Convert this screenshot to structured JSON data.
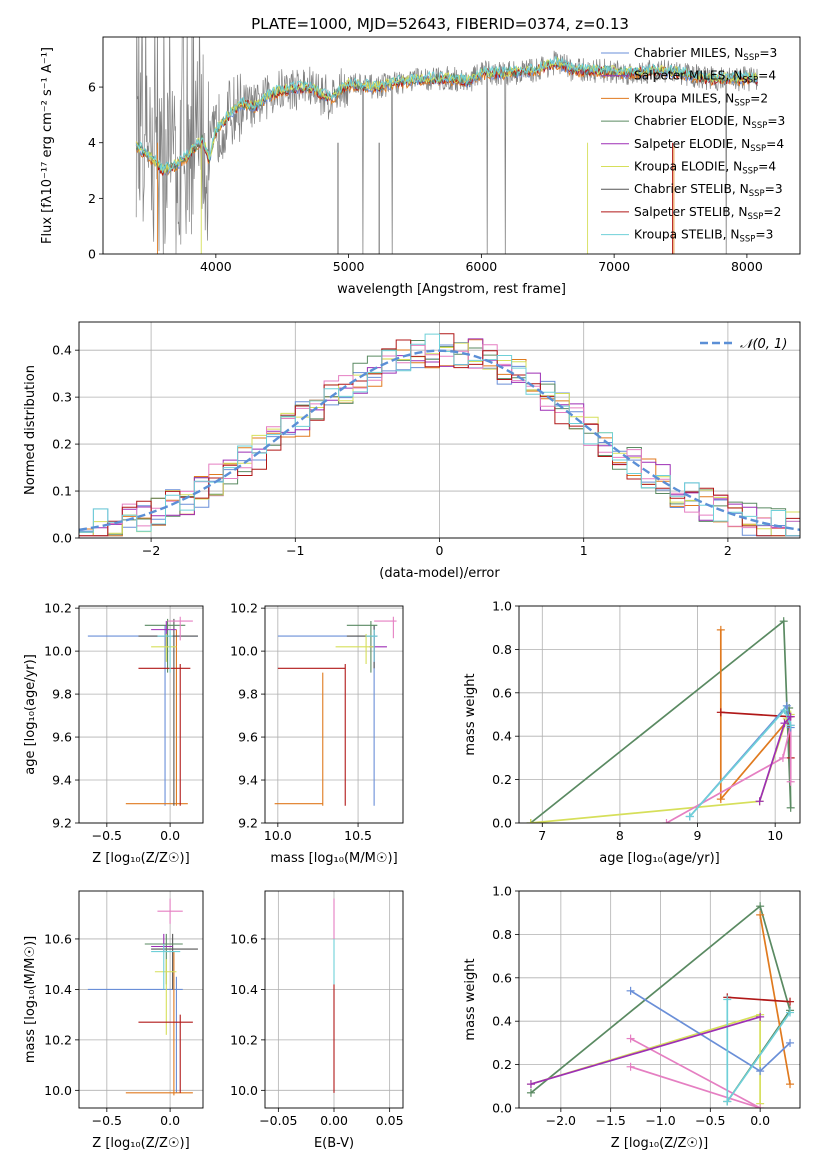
{
  "title": "PLATE=1000, MJD=52643, FIBERID=0374, z=0.13",
  "colors": {
    "chabrier_miles": "#6a8fd8",
    "salpeter_miles": "#8c3fb6",
    "kroupa_miles": "#e07a1f",
    "chabrier_elodie": "#5a8a62",
    "salpeter_elodie": "#9d2fb5",
    "kroupa_elodie": "#d6df5a",
    "chabrier_stelib": "#555555",
    "salpeter_stelib": "#b01818",
    "kroupa_stelib": "#6fd0d8",
    "pink": "#e57fc2",
    "data": "#808080",
    "normal": "#5b8fd6"
  },
  "chart_data": [
    {
      "id": "spectrum",
      "type": "line",
      "xlabel": "wavelength [Angstrom, rest frame]",
      "ylabel": "Flux [f$_\\lambda$10$^{-17}$ erg cm$^{-2}$ s$^{-1}$ A$^{-1}$]",
      "ylabel_display": "Flux [fλ10⁻¹⁷ erg cm⁻² s⁻¹ A⁻¹]",
      "xlim": [
        3150,
        8400
      ],
      "ylim": [
        0,
        7.8
      ],
      "xticks": [
        4000,
        5000,
        6000,
        7000,
        8000
      ],
      "yticks": [
        0,
        2,
        4,
        6
      ],
      "legend": [
        {
          "label": "Chabrier MILES, N",
          "sub": "SSP",
          "eq": "=3",
          "color": "#6a8fd8"
        },
        {
          "label": "Salpeter MILES, N",
          "sub": "SSP",
          "eq": "=4",
          "color": "#8c3fb6"
        },
        {
          "label": "Kroupa MILES, N",
          "sub": "SSP",
          "eq": "=2",
          "color": "#e07a1f"
        },
        {
          "label": "Chabrier ELODIE, N",
          "sub": "SSP",
          "eq": "=3",
          "color": "#5a8a62"
        },
        {
          "label": "Salpeter ELODIE, N",
          "sub": "SSP",
          "eq": "=4",
          "color": "#9d2fb5"
        },
        {
          "label": "Kroupa ELODIE, N",
          "sub": "SSP",
          "eq": "=4",
          "color": "#d6df5a"
        },
        {
          "label": "Chabrier STELIB, N",
          "sub": "SSP",
          "eq": "=3",
          "color": "#555555"
        },
        {
          "label": "Salpeter STELIB, N",
          "sub": "SSP",
          "eq": "=2",
          "color": "#b01818"
        },
        {
          "label": "Kroupa STELIB, N",
          "sub": "SSP",
          "eq": "=3",
          "color": "#6fd0d8"
        }
      ],
      "model_continuum": [
        [
          3400,
          3.9
        ],
        [
          3500,
          3.5
        ],
        [
          3600,
          3.0
        ],
        [
          3700,
          3.2
        ],
        [
          3800,
          3.6
        ],
        [
          3900,
          4.1
        ],
        [
          3950,
          3.4
        ],
        [
          4000,
          4.4
        ],
        [
          4100,
          5.0
        ],
        [
          4200,
          5.4
        ],
        [
          4300,
          5.3
        ],
        [
          4400,
          5.7
        ],
        [
          4500,
          5.9
        ],
        [
          4700,
          6.0
        ],
        [
          4860,
          5.6
        ],
        [
          5000,
          6.1
        ],
        [
          5200,
          6.0
        ],
        [
          5400,
          6.2
        ],
        [
          5600,
          6.3
        ],
        [
          5800,
          6.3
        ],
        [
          5900,
          6.2
        ],
        [
          6000,
          6.5
        ],
        [
          6200,
          6.5
        ],
        [
          6400,
          6.6
        ],
        [
          6563,
          6.9
        ],
        [
          6700,
          6.6
        ],
        [
          6900,
          6.6
        ],
        [
          7100,
          6.5
        ],
        [
          7300,
          6.6
        ],
        [
          7500,
          6.5
        ],
        [
          7700,
          6.3
        ],
        [
          7900,
          6.3
        ],
        [
          8050,
          6.3
        ]
      ]
    },
    {
      "id": "residuals",
      "type": "step",
      "xlabel": "(data-model)/error",
      "ylabel": "Normed distribution",
      "xlim": [
        -2.5,
        2.5
      ],
      "ylim": [
        0,
        0.46
      ],
      "xticks": [
        -2,
        -1,
        0,
        1,
        2
      ],
      "xtick_labels": [
        "−2",
        "−1",
        "0",
        "1",
        "2"
      ],
      "yticks": [
        0.0,
        0.1,
        0.2,
        0.3,
        0.4
      ],
      "ytick_labels": [
        "0.0",
        "0.1",
        "0.2",
        "0.3",
        "0.4"
      ],
      "legend_label": "𝒩(0, 1)",
      "bin_width": 0.1
    },
    {
      "id": "age_vs_Z",
      "type": "scatter",
      "xlabel": "Z [log₁₀(Z/Z☉)]",
      "ylabel": "age  [log₁₀(age/yr)]",
      "xlim": [
        -0.72,
        0.26
      ],
      "ylim": [
        9.2,
        10.21
      ],
      "xticks": [
        -0.5,
        0.0
      ],
      "xtick_labels": [
        "−0.5",
        "0.0"
      ],
      "yticks": [
        9.2,
        9.4,
        9.6,
        9.8,
        10.0,
        10.2
      ],
      "ytick_labels": [
        "9.2",
        "9.4",
        "9.6",
        "9.8",
        "10.0",
        "10.2"
      ],
      "points": [
        {
          "x": -0.04,
          "xlo": -0.65,
          "xhi": 0.22,
          "y": 10.07,
          "ylo": 9.28,
          "yhi": 10.12,
          "color": "#6a8fd8"
        },
        {
          "x": 0.05,
          "xlo": -0.35,
          "xhi": 0.14,
          "y": 9.29,
          "ylo": 9.28,
          "yhi": 10.1,
          "color": "#e07a1f"
        },
        {
          "x": 0.03,
          "xlo": -0.25,
          "xhi": 0.22,
          "y": 10.07,
          "ylo": 9.28,
          "yhi": 10.15,
          "color": "#555555"
        },
        {
          "x": -0.02,
          "xlo": -0.2,
          "xhi": 0.12,
          "y": 10.12,
          "ylo": 9.9,
          "yhi": 10.15,
          "color": "#5a8a62"
        },
        {
          "x": 0.08,
          "xlo": -0.02,
          "xhi": 0.18,
          "y": 10.14,
          "ylo": 10.05,
          "yhi": 10.16,
          "color": "#e57fc2"
        },
        {
          "x": -0.03,
          "xlo": -0.15,
          "xhi": 0.05,
          "y": 10.1,
          "ylo": 10.02,
          "yhi": 10.14,
          "color": "#9d2fb5"
        },
        {
          "x": -0.03,
          "xlo": -0.15,
          "xhi": 0.05,
          "y": 10.02,
          "ylo": 9.95,
          "yhi": 10.08,
          "color": "#d6df5a"
        },
        {
          "x": 0.08,
          "xlo": -0.25,
          "xhi": 0.16,
          "y": 9.92,
          "ylo": 9.28,
          "yhi": 9.94,
          "color": "#b01818"
        },
        {
          "x": 0.0,
          "xlo": -0.1,
          "xhi": 0.02,
          "y": 10.07,
          "ylo": 9.9,
          "yhi": 10.1,
          "color": "#6fd0d8"
        }
      ]
    },
    {
      "id": "age_vs_mass",
      "type": "scatter",
      "xlabel": "mass [log₁₀(M/M☉)]",
      "ylabel": "",
      "xlim": [
        9.92,
        10.78
      ],
      "ylim": [
        9.2,
        10.21
      ],
      "xticks": [
        10.0,
        10.5
      ],
      "xtick_labels": [
        "10.0",
        "10.5"
      ],
      "yticks": [
        9.2,
        9.4,
        9.6,
        9.8,
        10.0,
        10.2
      ],
      "ytick_labels": [
        "9.2",
        "9.4",
        "9.6",
        "9.8",
        "10.0",
        "10.2"
      ],
      "points": [
        {
          "x": 10.6,
          "xlo": 10.0,
          "xhi": 10.62,
          "y": 10.07,
          "ylo": 9.28,
          "yhi": 10.12,
          "color": "#6a8fd8"
        },
        {
          "x": 10.28,
          "xlo": 9.98,
          "xhi": 10.28,
          "y": 9.29,
          "ylo": 9.28,
          "yhi": 9.9,
          "color": "#e07a1f"
        },
        {
          "x": 10.6,
          "xlo": 10.43,
          "xhi": 10.62,
          "y": 10.07,
          "ylo": 9.92,
          "yhi": 10.12,
          "color": "#555555"
        },
        {
          "x": 10.58,
          "xlo": 10.43,
          "xhi": 10.62,
          "y": 10.12,
          "ylo": 9.9,
          "yhi": 10.14,
          "color": "#5a8a62"
        },
        {
          "x": 10.72,
          "xlo": 10.6,
          "xhi": 10.74,
          "y": 10.14,
          "ylo": 10.06,
          "yhi": 10.16,
          "color": "#e57fc2"
        },
        {
          "x": 10.6,
          "xlo": 10.57,
          "xhi": 10.68,
          "y": 10.02,
          "ylo": 9.95,
          "yhi": 10.08,
          "color": "#9d2fb5"
        },
        {
          "x": 10.55,
          "xlo": 10.36,
          "xhi": 10.6,
          "y": 10.02,
          "ylo": 9.94,
          "yhi": 10.08,
          "color": "#d6df5a"
        },
        {
          "x": 10.42,
          "xlo": 10.0,
          "xhi": 10.42,
          "y": 9.92,
          "ylo": 9.28,
          "yhi": 9.94,
          "color": "#b01818"
        },
        {
          "x": 10.6,
          "xlo": 10.55,
          "xhi": 10.62,
          "y": 10.07,
          "ylo": 9.95,
          "yhi": 10.1,
          "color": "#6fd0d8"
        }
      ]
    },
    {
      "id": "weight_vs_age",
      "type": "line",
      "xlabel": "age  [log₁₀(age/yr)]",
      "ylabel": "mass weight",
      "xlim": [
        6.7,
        10.32
      ],
      "ylim": [
        0,
        1.0
      ],
      "xticks": [
        7,
        8,
        9,
        10
      ],
      "xtick_labels": [
        "7",
        "8",
        "9",
        "10"
      ],
      "yticks": [
        0.0,
        0.2,
        0.4,
        0.6,
        0.8,
        1.0
      ],
      "ytick_labels": [
        "0.0",
        "0.2",
        "0.4",
        "0.6",
        "0.8",
        "1.0"
      ],
      "series": [
        {
          "color": "#5a8a62",
          "x": [
            6.85,
            10.11,
            10.2,
            10.18
          ],
          "y": [
            0.0,
            0.93,
            0.07,
            0.53
          ]
        },
        {
          "color": "#e07a1f",
          "x": [
            9.3,
            9.3,
            10.2
          ],
          "y": [
            0.89,
            0.11,
            0.49
          ]
        },
        {
          "color": "#b01818",
          "x": [
            9.3,
            10.18,
            10.2
          ],
          "y": [
            0.51,
            0.49,
            0.3
          ]
        },
        {
          "color": "#d6df5a",
          "x": [
            6.85,
            9.8,
            10.15,
            10.2
          ],
          "y": [
            0.0,
            0.1,
            0.48,
            0.5
          ]
        },
        {
          "color": "#e57fc2",
          "x": [
            8.6,
            10.1,
            10.2,
            10.2
          ],
          "y": [
            0.0,
            0.3,
            0.45,
            0.19
          ]
        },
        {
          "color": "#6a8fd8",
          "x": [
            8.9,
            10.15,
            10.2
          ],
          "y": [
            0.03,
            0.54,
            0.44
          ]
        },
        {
          "color": "#6fd0d8",
          "x": [
            8.9,
            10.12,
            10.2
          ],
          "y": [
            0.03,
            0.52,
            0.45
          ]
        },
        {
          "color": "#9d2fb5",
          "x": [
            9.8,
            10.12,
            10.2
          ],
          "y": [
            0.1,
            0.46,
            0.49
          ]
        }
      ]
    },
    {
      "id": "mass_vs_Z",
      "type": "scatter",
      "xlabel": "Z [log₁₀(Z/Z☉)]",
      "ylabel": "mass [log₁₀(M/M☉)]",
      "xlim": [
        -0.72,
        0.26
      ],
      "ylim": [
        9.93,
        10.79
      ],
      "xticks": [
        -0.5,
        0.0
      ],
      "xtick_labels": [
        "−0.5",
        "0.0"
      ],
      "yticks": [
        10.0,
        10.2,
        10.4,
        10.6
      ],
      "ytick_labels": [
        "10.0",
        "10.2",
        "10.4",
        "10.6"
      ],
      "points": [
        {
          "x": 0.05,
          "xlo": -0.65,
          "xhi": 0.1,
          "y": 10.4,
          "ylo": 9.99,
          "yhi": 10.45,
          "color": "#6a8fd8"
        },
        {
          "x": 0.03,
          "xlo": -0.35,
          "xhi": 0.18,
          "y": 9.99,
          "ylo": 9.98,
          "yhi": 10.55,
          "color": "#e07a1f"
        },
        {
          "x": 0.02,
          "xlo": -0.15,
          "xhi": 0.22,
          "y": 10.56,
          "ylo": 10.4,
          "yhi": 10.62,
          "color": "#555555"
        },
        {
          "x": -0.03,
          "xlo": -0.2,
          "xhi": 0.1,
          "y": 10.58,
          "ylo": 10.42,
          "yhi": 10.62,
          "color": "#5a8a62"
        },
        {
          "x": 0.0,
          "xlo": -0.1,
          "xhi": 0.1,
          "y": 10.71,
          "ylo": 10.66,
          "yhi": 10.76,
          "color": "#e57fc2"
        },
        {
          "x": -0.05,
          "xlo": -0.15,
          "xhi": 0.02,
          "y": 10.57,
          "ylo": 10.55,
          "yhi": 10.62,
          "color": "#9d2fb5"
        },
        {
          "x": -0.03,
          "xlo": -0.12,
          "xhi": 0.05,
          "y": 10.47,
          "ylo": 10.22,
          "yhi": 10.52,
          "color": "#d6df5a"
        },
        {
          "x": 0.08,
          "xlo": -0.25,
          "xhi": 0.18,
          "y": 10.27,
          "ylo": 9.99,
          "yhi": 10.3,
          "color": "#b01818"
        },
        {
          "x": -0.05,
          "xlo": -0.15,
          "xhi": 0.08,
          "y": 10.55,
          "ylo": 10.4,
          "yhi": 10.58,
          "color": "#6fd0d8"
        }
      ]
    },
    {
      "id": "mass_vs_ebv",
      "type": "scatter",
      "xlabel": "E(B-V)",
      "ylabel": "",
      "xlim": [
        -0.062,
        0.062
      ],
      "ylim": [
        9.93,
        10.79
      ],
      "xticks": [
        -0.05,
        0.0,
        0.05
      ],
      "xtick_labels": [
        "−0.05",
        "0.00",
        "0.05"
      ],
      "yticks": [
        10.0,
        10.2,
        10.4,
        10.6
      ],
      "ytick_labels": [
        "10.0",
        "10.2",
        "10.4",
        "10.6"
      ],
      "segments": [
        {
          "x": 0.0,
          "ylo": 9.99,
          "yhi": 10.42,
          "color": "#b01818"
        },
        {
          "x": 0.0,
          "ylo": 10.42,
          "yhi": 10.6,
          "color": "#6fd0d8"
        },
        {
          "x": 0.0,
          "ylo": 10.6,
          "yhi": 10.76,
          "color": "#e57fc2"
        }
      ]
    },
    {
      "id": "weight_vs_Z",
      "type": "line",
      "xlabel": "Z [log₁₀(Z/Z☉)]",
      "ylabel": "mass weight",
      "xlim": [
        -2.42,
        0.4
      ],
      "ylim": [
        0,
        1.0
      ],
      "xticks": [
        -2.0,
        -1.5,
        -1.0,
        -0.5,
        0.0
      ],
      "xtick_labels": [
        "−2.0",
        "−1.5",
        "−1.0",
        "−0.5",
        "0.0"
      ],
      "yticks": [
        0.0,
        0.2,
        0.4,
        0.6,
        0.8,
        1.0
      ],
      "ytick_labels": [
        "0.0",
        "0.2",
        "0.4",
        "0.6",
        "0.8",
        "1.0"
      ],
      "series": [
        {
          "color": "#5a8a62",
          "x": [
            -2.3,
            0.0,
            0.3,
            -0.33
          ],
          "y": [
            0.07,
            0.93,
            0.45,
            0.03
          ]
        },
        {
          "color": "#e07a1f",
          "x": [
            0.0,
            0.3
          ],
          "y": [
            0.89,
            0.11
          ]
        },
        {
          "color": "#b01818",
          "x": [
            -0.33,
            0.3
          ],
          "y": [
            0.51,
            0.49
          ]
        },
        {
          "color": "#d6df5a",
          "x": [
            -2.3,
            0.0,
            0.0
          ],
          "y": [
            0.11,
            0.43,
            0.02
          ]
        },
        {
          "color": "#e57fc2",
          "x": [
            -1.3,
            0.0,
            -1.3
          ],
          "y": [
            0.32,
            0.0,
            0.19
          ]
        },
        {
          "color": "#6a8fd8",
          "x": [
            -1.3,
            0.0,
            0.3
          ],
          "y": [
            0.54,
            0.17,
            0.3
          ]
        },
        {
          "color": "#6fd0d8",
          "x": [
            -0.33,
            -0.33,
            0.3
          ],
          "y": [
            0.5,
            0.03,
            0.44
          ]
        },
        {
          "color": "#9d2fb5",
          "x": [
            -2.3,
            0.0
          ],
          "y": [
            0.11,
            0.42
          ]
        }
      ]
    }
  ]
}
